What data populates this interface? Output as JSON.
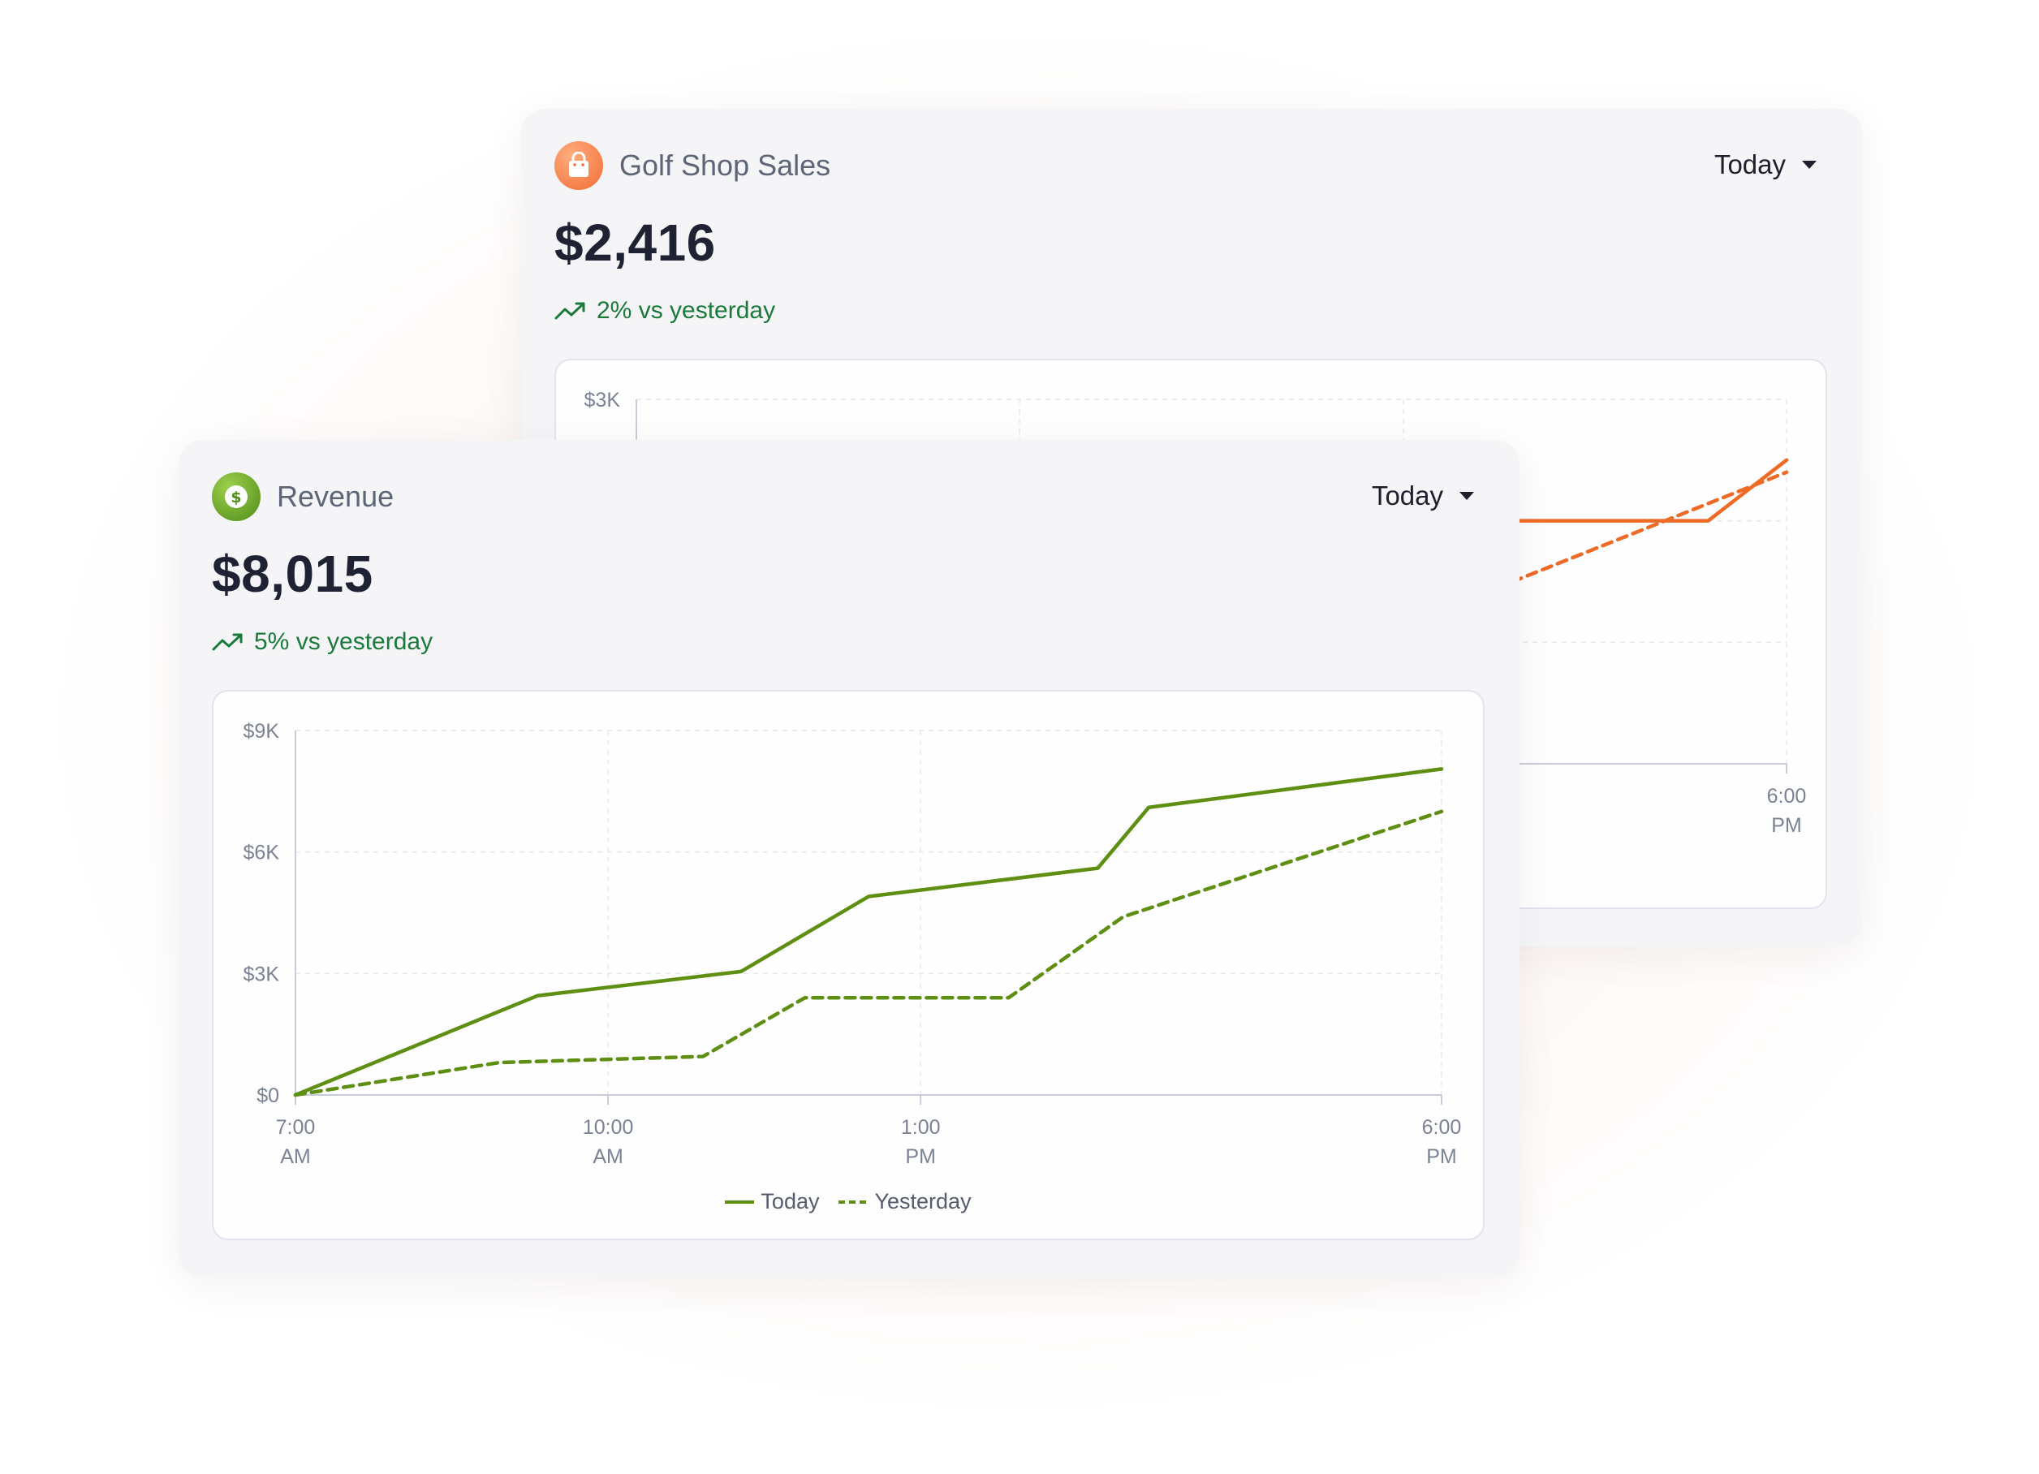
{
  "colors": {
    "revenue": "#5f8f12",
    "golf": "#ef6a26",
    "positive": "#1a7a3a"
  },
  "back_card": {
    "icon": "shopping-bag-icon",
    "title": "Golf Shop Sales",
    "range": "Today",
    "value": "$2,416",
    "delta": "2% vs yesterday"
  },
  "front_card": {
    "icon": "dollar-coin-icon",
    "title": "Revenue",
    "range": "Today",
    "value": "$8,015",
    "delta": "5% vs yesterday"
  },
  "chart_data": [
    {
      "type": "line",
      "title": "Golf Shop Sales",
      "y_ticks": [
        "$3K"
      ],
      "x_ticks": [
        [
          "6:00",
          "PM"
        ]
      ],
      "ylim": [
        0,
        3000
      ],
      "x_range": [
        "7:00 AM",
        "6:00 PM"
      ],
      "grid": true,
      "series": [
        {
          "name": "Today",
          "style": "solid",
          "points": [
            [
              14.8,
              2000
            ],
            [
              17.25,
              2000
            ],
            [
              18.0,
              2500
            ]
          ]
        },
        {
          "name": "Yesterday",
          "style": "dashed",
          "points": [
            [
              14.8,
              1300
            ],
            [
              18.0,
              2400
            ]
          ]
        }
      ]
    },
    {
      "type": "line",
      "title": "Revenue",
      "y_ticks": [
        "$0",
        "$3K",
        "$6K",
        "$9K"
      ],
      "x_ticks": [
        [
          "7:00",
          "AM"
        ],
        [
          "10:00",
          "AM"
        ],
        [
          "1:00",
          "PM"
        ],
        [
          "6:00",
          "PM"
        ]
      ],
      "ylim": [
        0,
        9000
      ],
      "x_range": [
        "7:00 AM",
        "6:00 PM"
      ],
      "grid": true,
      "legend": "bottom-center",
      "series": [
        {
          "name": "Today",
          "style": "solid",
          "points": [
            [
              7,
              0
            ],
            [
              8.9,
              2450
            ],
            [
              10.5,
              3050
            ],
            [
              11.5,
              4900
            ],
            [
              13.3,
              5600
            ],
            [
              13.7,
              7100
            ],
            [
              16.0,
              8050
            ]
          ]
        },
        {
          "name": "Yesterday",
          "style": "dashed",
          "points": [
            [
              7,
              0
            ],
            [
              8.6,
              800
            ],
            [
              10.2,
              950
            ],
            [
              11.0,
              2400
            ],
            [
              12.6,
              2400
            ],
            [
              13.5,
              4400
            ],
            [
              16.0,
              7000
            ]
          ]
        }
      ],
      "legend_labels": [
        "Today",
        "Yesterday"
      ]
    }
  ]
}
